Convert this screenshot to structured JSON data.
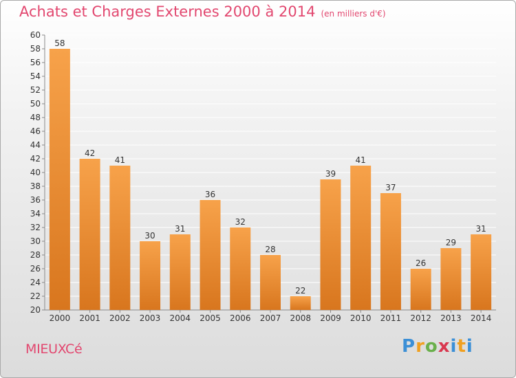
{
  "header": {
    "title": "Achats et Charges Externes 2000 à 2014",
    "subtitle": "(en milliers d'€)"
  },
  "footer": {
    "place": "MIEUXCé",
    "brand": "Proxiti"
  },
  "colors": {
    "bar_light": "#f7a24a",
    "bar_dark": "#d8761e",
    "title": "#e2476f",
    "grid": "#ffffff"
  },
  "chart_data": {
    "type": "bar",
    "title": "Achats et Charges Externes 2000 à 2014",
    "subtitle": "(en milliers d'€)",
    "categories": [
      "2000",
      "2001",
      "2002",
      "2003",
      "2004",
      "2005",
      "2006",
      "2007",
      "2008",
      "2009",
      "2010",
      "2011",
      "2012",
      "2013",
      "2014"
    ],
    "values": [
      58,
      42,
      41,
      30,
      31,
      36,
      32,
      28,
      22,
      39,
      41,
      37,
      26,
      29,
      31
    ],
    "ylim": [
      20,
      60
    ],
    "ytick_step": 2,
    "grid": true,
    "legend": "none",
    "data_labels": true
  }
}
